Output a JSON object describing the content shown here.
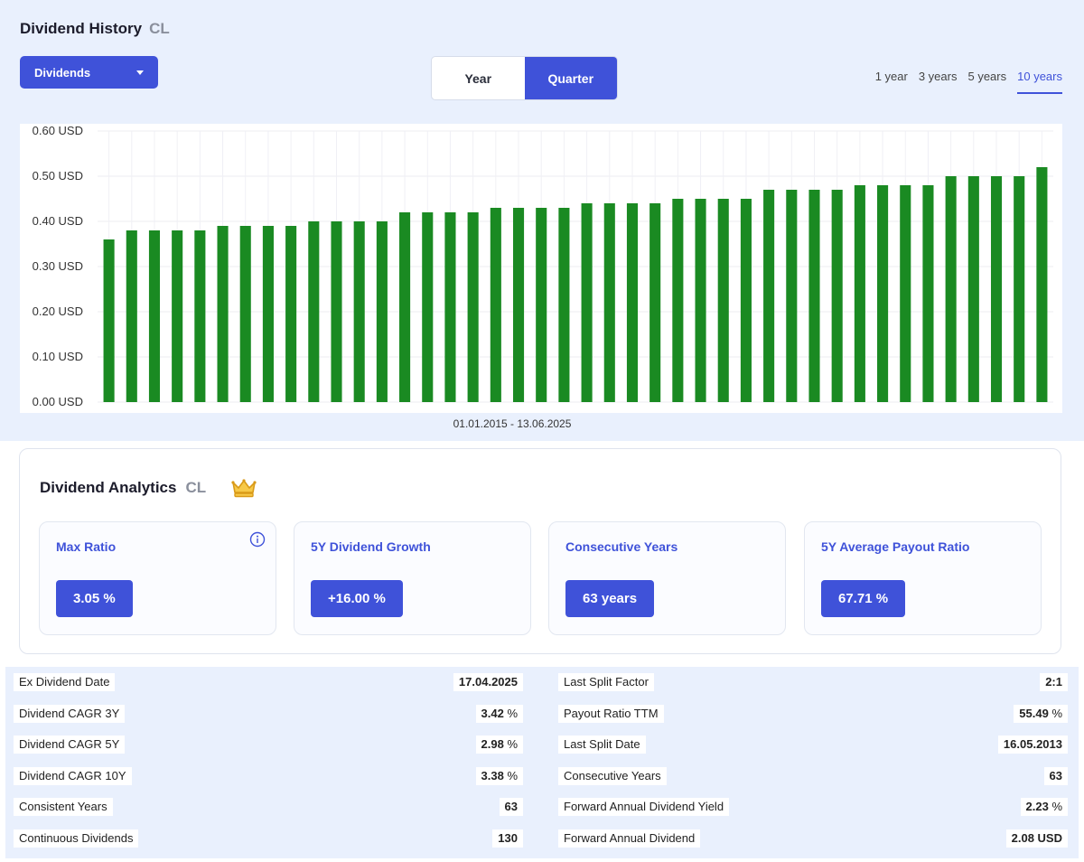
{
  "history": {
    "title": "Dividend History",
    "ticker": "CL",
    "dropdown_label": "Dividends",
    "period_toggle": [
      "Year",
      "Quarter"
    ],
    "period_active": "Quarter",
    "ranges": [
      "1 year",
      "3 years",
      "5 years",
      "10 years"
    ],
    "range_active": "10 years",
    "date_range": "01.01.2015 - 13.06.2025"
  },
  "chart_data": {
    "type": "bar",
    "title": "",
    "xlabel": "",
    "ylabel": "",
    "ylim": [
      0,
      0.6
    ],
    "y_ticks": [
      "0.00 USD",
      "0.10 USD",
      "0.20 USD",
      "0.30 USD",
      "0.40 USD",
      "0.50 USD",
      "0.60 USD"
    ],
    "grid": true,
    "bar_color": "#1a8a22",
    "values": [
      0.36,
      0.38,
      0.38,
      0.38,
      0.38,
      0.39,
      0.39,
      0.39,
      0.39,
      0.4,
      0.4,
      0.4,
      0.4,
      0.42,
      0.42,
      0.42,
      0.42,
      0.43,
      0.43,
      0.43,
      0.43,
      0.44,
      0.44,
      0.44,
      0.44,
      0.45,
      0.45,
      0.45,
      0.45,
      0.47,
      0.47,
      0.47,
      0.47,
      0.48,
      0.48,
      0.48,
      0.48,
      0.5,
      0.5,
      0.5,
      0.5,
      0.52
    ]
  },
  "analytics": {
    "title": "Dividend Analytics",
    "ticker": "CL",
    "crown_icon": "crown-icon",
    "metrics": [
      {
        "label": "Max Ratio",
        "value": "3.05 %"
      },
      {
        "label": "5Y Dividend Growth",
        "value": "+16.00 %"
      },
      {
        "label": "Consecutive Years",
        "value": "63 years"
      },
      {
        "label": "5Y Average Payout Ratio",
        "value": "67.71 %"
      }
    ]
  },
  "stats": {
    "left": [
      {
        "label": "Ex Dividend Date",
        "value": "17.04.2025",
        "unit": ""
      },
      {
        "label": "Dividend CAGR 3Y",
        "value": "3.42",
        "unit": " %"
      },
      {
        "label": "Dividend CAGR 5Y",
        "value": "2.98",
        "unit": " %"
      },
      {
        "label": "Dividend CAGR 10Y",
        "value": "3.38",
        "unit": " %"
      },
      {
        "label": "Consistent Years",
        "value": "63",
        "unit": ""
      },
      {
        "label": "Continuous Dividends",
        "value": "130",
        "unit": ""
      }
    ],
    "right": [
      {
        "label": "Last Split Factor",
        "value": "2:1",
        "unit": ""
      },
      {
        "label": "Payout Ratio TTM",
        "value": "55.49",
        "unit": " %"
      },
      {
        "label": "Last Split Date",
        "value": "16.05.2013",
        "unit": ""
      },
      {
        "label": "Consecutive Years",
        "value": "63",
        "unit": ""
      },
      {
        "label": "Forward Annual Dividend Yield",
        "value": "2.23",
        "unit": " %"
      },
      {
        "label": "Forward Annual Dividend",
        "value": "2.08 USD",
        "unit": ""
      }
    ]
  },
  "colors": {
    "accent": "#3f52d9",
    "panel": "#e9f0fd",
    "bar": "#1a8a22"
  }
}
